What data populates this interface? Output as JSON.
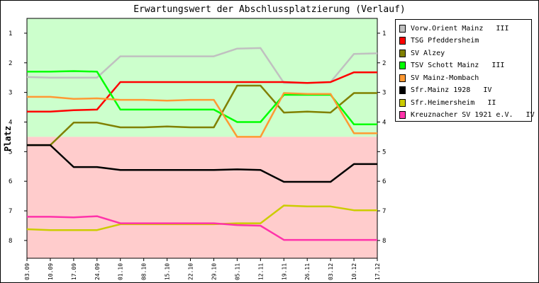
{
  "chart_data": {
    "type": "line",
    "title": "Erwartungswert der Abschlussplatzierung (Verlauf)",
    "ylabel": "Platz",
    "xlabel": "",
    "categories": [
      "03.09",
      "10.09",
      "17.09",
      "24.09",
      "01.10",
      "08.10",
      "15.10",
      "22.10",
      "29.10",
      "05.11",
      "12.11",
      "19.11",
      "26.11",
      "03.12",
      "10.12",
      "17.12"
    ],
    "y_ticks": [
      1,
      2,
      3,
      4,
      5,
      6,
      7,
      8
    ],
    "ylim": [
      0.5,
      8.6
    ],
    "y_inverted": true,
    "zones": [
      {
        "from": 0.5,
        "to": 4.5,
        "color": "#ccffcc"
      },
      {
        "from": 4.5,
        "to": 8.6,
        "color": "#ffcccc"
      }
    ],
    "legend_position": "right",
    "series": [
      {
        "name": "Vorw.Orient Mainz   III",
        "color": "#c0c0c0",
        "values": [
          2.48,
          2.5,
          2.5,
          2.5,
          1.78,
          1.78,
          1.78,
          1.78,
          1.78,
          1.52,
          1.5,
          2.68,
          2.68,
          2.65,
          1.7,
          1.68
        ]
      },
      {
        "name": "TSG Pfeddersheim",
        "color": "#ff0000",
        "values": [
          3.65,
          3.65,
          3.6,
          3.58,
          2.65,
          2.65,
          2.65,
          2.65,
          2.65,
          2.65,
          2.65,
          2.65,
          2.68,
          2.65,
          2.32,
          2.32
        ]
      },
      {
        "name": "SV Alzey",
        "color": "#808000",
        "values": [
          4.78,
          4.78,
          4.02,
          4.02,
          4.18,
          4.18,
          4.15,
          4.18,
          4.18,
          2.77,
          2.77,
          3.68,
          3.65,
          3.68,
          3.02,
          3.02
        ]
      },
      {
        "name": "TSV Schott Mainz   III",
        "color": "#00ff00",
        "values": [
          2.3,
          2.3,
          2.28,
          2.3,
          3.58,
          3.58,
          3.58,
          3.58,
          3.58,
          4.0,
          4.0,
          3.08,
          3.08,
          3.08,
          4.08,
          4.08
        ]
      },
      {
        "name": "SV Mainz-Mombach",
        "color": "#ff9933",
        "values": [
          3.15,
          3.15,
          3.22,
          3.2,
          3.25,
          3.25,
          3.28,
          3.25,
          3.25,
          4.5,
          4.5,
          3.02,
          3.05,
          3.05,
          4.38,
          4.38
        ]
      },
      {
        "name": "Sfr.Mainz 1928   IV",
        "color": "#000000",
        "values": [
          4.78,
          4.78,
          5.52,
          5.52,
          5.62,
          5.62,
          5.62,
          5.62,
          5.62,
          5.6,
          5.62,
          6.02,
          6.02,
          6.02,
          5.42,
          5.42
        ]
      },
      {
        "name": "Sfr.Heimersheim   II",
        "color": "#cccc00",
        "values": [
          7.62,
          7.65,
          7.65,
          7.65,
          7.45,
          7.45,
          7.45,
          7.45,
          7.45,
          7.42,
          7.42,
          6.82,
          6.85,
          6.85,
          6.98,
          6.98
        ]
      },
      {
        "name": "Kreuznacher SV 1921 e.V.   IV",
        "color": "#ff33aa",
        "values": [
          7.2,
          7.2,
          7.22,
          7.18,
          7.42,
          7.42,
          7.42,
          7.42,
          7.42,
          7.48,
          7.5,
          7.98,
          7.98,
          7.98,
          7.98,
          7.98
        ]
      }
    ]
  }
}
